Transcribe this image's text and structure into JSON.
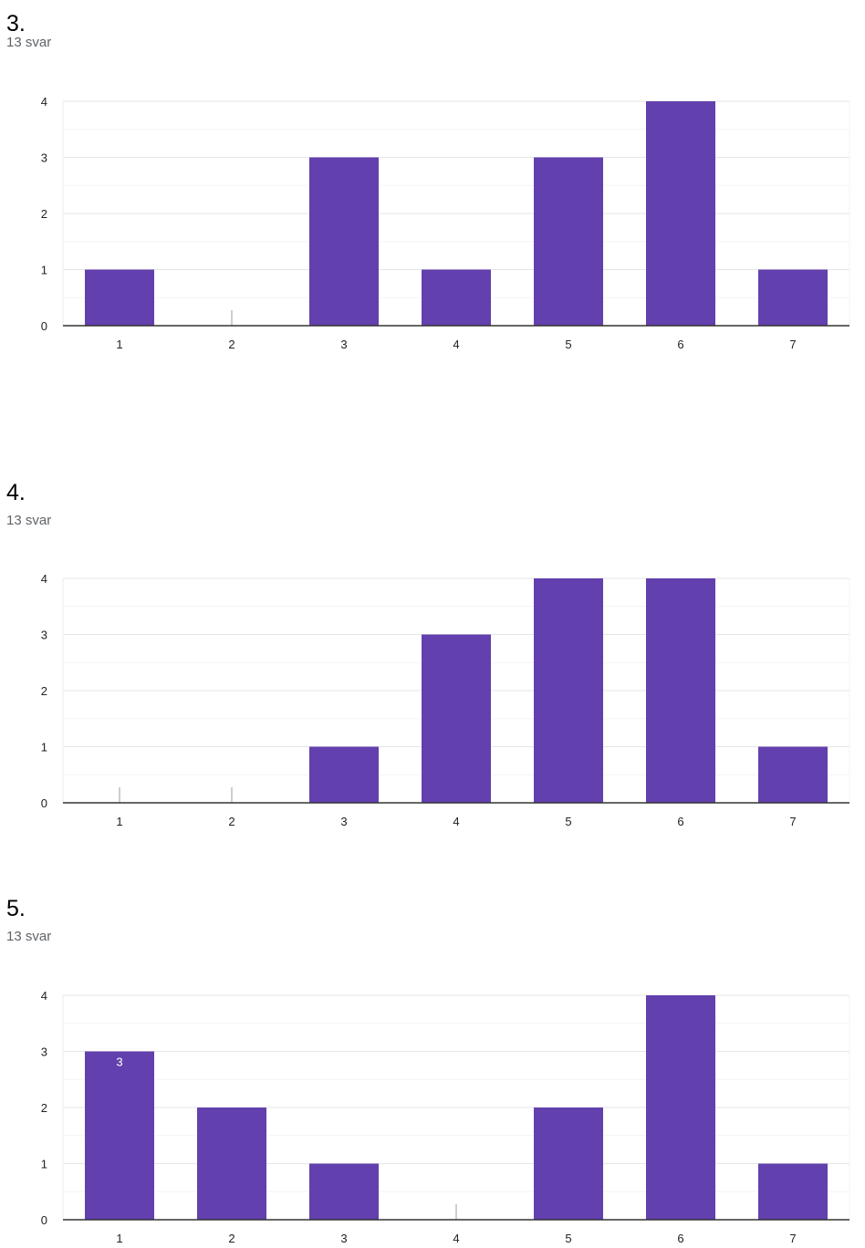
{
  "colors": {
    "bar": "#6240AE",
    "grid": "#ececec",
    "baseline": "#333333",
    "stub": "#9e9e9e",
    "bar_label": "#ffffff"
  },
  "charts": [
    {
      "title": "3.",
      "count_text": "13 svar"
    },
    {
      "title": "4.",
      "count_text": "13 svar"
    },
    {
      "title": "5.",
      "count_text": "13 svar"
    }
  ],
  "chart_data": [
    {
      "type": "bar",
      "categories": [
        "1",
        "2",
        "3",
        "4",
        "5",
        "6",
        "7"
      ],
      "values": [
        1,
        0,
        3,
        1,
        3,
        4,
        1
      ],
      "ylim": [
        0,
        4
      ],
      "yticks": [
        "0",
        "1",
        "2",
        "3",
        "4"
      ],
      "grid": true,
      "data_labels": []
    },
    {
      "type": "bar",
      "categories": [
        "1",
        "2",
        "3",
        "4",
        "5",
        "6",
        "7"
      ],
      "values": [
        0,
        0,
        1,
        3,
        4,
        4,
        1
      ],
      "ylim": [
        0,
        4
      ],
      "yticks": [
        "0",
        "1",
        "2",
        "3",
        "4"
      ],
      "grid": true,
      "data_labels": []
    },
    {
      "type": "bar",
      "categories": [
        "1",
        "2",
        "3",
        "4",
        "5",
        "6",
        "7"
      ],
      "values": [
        3,
        2,
        1,
        0,
        2,
        4,
        1
      ],
      "ylim": [
        0,
        4
      ],
      "yticks": [
        "0",
        "1",
        "2",
        "3",
        "4"
      ],
      "grid": true,
      "data_labels": [
        "3",
        "",
        "",
        "",
        "",
        "",
        ""
      ]
    }
  ]
}
